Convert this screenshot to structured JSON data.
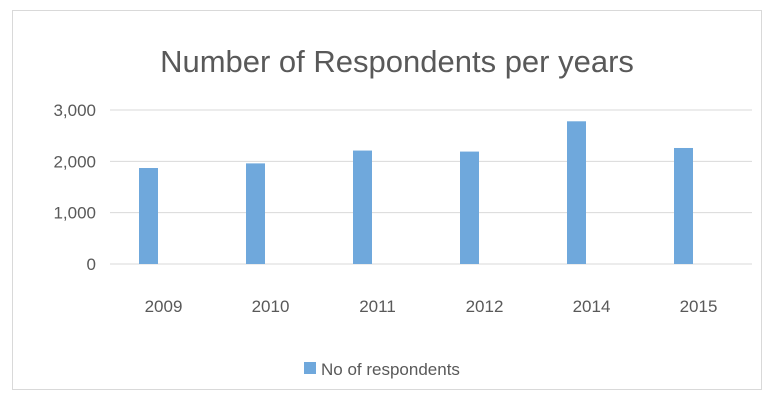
{
  "chart_data": {
    "type": "bar",
    "title": "Number of Respondents per years",
    "categories": [
      "2009",
      "2010",
      "2011",
      "2012",
      "2014",
      "2015"
    ],
    "series": [
      {
        "name": "No of respondents",
        "values": [
          1870,
          1960,
          2210,
          2190,
          2780,
          2260
        ],
        "color": "#6fa8dc"
      }
    ],
    "ylim": [
      0,
      3000
    ],
    "yticks": [
      0,
      1000,
      2000,
      3000
    ],
    "ytick_labels": [
      "0",
      "1,000",
      "2,000",
      "3,000"
    ],
    "grid": true,
    "legend": "bottom"
  }
}
